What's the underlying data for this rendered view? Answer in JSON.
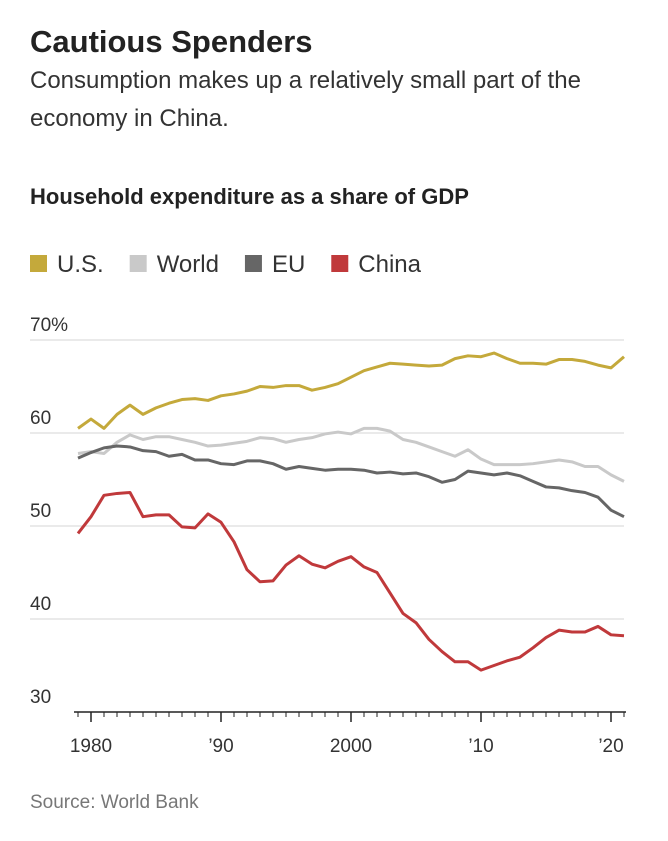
{
  "chart_data": {
    "type": "line",
    "title": "Cautious Spenders",
    "subtitle": "Consumption makes up a relatively small part of the economy in China.",
    "chart_title": "Household expenditure as a share of GDP",
    "source": "Source: World Bank",
    "x": [
      1979,
      1980,
      1981,
      1982,
      1983,
      1984,
      1985,
      1986,
      1987,
      1988,
      1989,
      1990,
      1991,
      1992,
      1993,
      1994,
      1995,
      1996,
      1997,
      1998,
      1999,
      2000,
      2001,
      2002,
      2003,
      2004,
      2005,
      2006,
      2007,
      2008,
      2009,
      2010,
      2011,
      2012,
      2013,
      2014,
      2015,
      2016,
      2017,
      2018,
      2019,
      2020,
      2021
    ],
    "xlim": [
      1979,
      2021
    ],
    "xticks": [
      1980,
      {
        "value": 1990,
        "label": "’90"
      },
      2000,
      {
        "value": 2010,
        "label": "’10"
      },
      {
        "value": 2020,
        "label": "’20"
      }
    ],
    "ylim": [
      30,
      70
    ],
    "yticks": [
      {
        "value": 70,
        "label": "70%"
      },
      60,
      50,
      40,
      30
    ],
    "grid": true,
    "series": [
      {
        "name": "U.S.",
        "color": "#c4a93b",
        "values": [
          60.5,
          61.5,
          60.5,
          62,
          63,
          62,
          62.7,
          63.2,
          63.6,
          63.7,
          63.5,
          64,
          64.2,
          64.5,
          65,
          64.9,
          65.1,
          65.1,
          64.6,
          64.9,
          65.3,
          66,
          66.7,
          67.1,
          67.5,
          67.4,
          67.3,
          67.2,
          67.3,
          68,
          68.3,
          68.2,
          68.6,
          68,
          67.5,
          67.5,
          67.4,
          67.9,
          67.9,
          67.7,
          67.3,
          67,
          68.2
        ]
      },
      {
        "name": "World",
        "color": "#c9c9c9",
        "values": [
          57.8,
          58,
          57.8,
          59,
          59.8,
          59.3,
          59.6,
          59.6,
          59.3,
          59,
          58.6,
          58.7,
          58.9,
          59.1,
          59.5,
          59.4,
          59,
          59.3,
          59.5,
          59.9,
          60.1,
          59.9,
          60.5,
          60.5,
          60.2,
          59.3,
          59,
          58.5,
          58,
          57.5,
          58.2,
          57.2,
          56.6,
          56.6,
          56.6,
          56.7,
          56.9,
          57.1,
          56.9,
          56.4,
          56.4,
          55.5,
          54.8
        ]
      },
      {
        "name": "EU",
        "color": "#666666",
        "values": [
          57.3,
          57.9,
          58.4,
          58.6,
          58.5,
          58.1,
          58,
          57.5,
          57.7,
          57.1,
          57.1,
          56.7,
          56.6,
          57,
          57,
          56.7,
          56.1,
          56.4,
          56.2,
          56,
          56.1,
          56.1,
          56,
          55.7,
          55.8,
          55.6,
          55.7,
          55.3,
          54.7,
          55,
          55.9,
          55.7,
          55.5,
          55.7,
          55.4,
          54.8,
          54.2,
          54.1,
          53.8,
          53.6,
          53.1,
          51.7,
          51
        ]
      },
      {
        "name": "China",
        "color": "#c0393b",
        "values": [
          49.2,
          51,
          53.3,
          53.5,
          53.6,
          51,
          51.2,
          51.2,
          49.9,
          49.8,
          51.3,
          50.4,
          48.3,
          45.3,
          44,
          44.1,
          45.8,
          46.8,
          45.9,
          45.5,
          46.2,
          46.7,
          45.6,
          45,
          42.8,
          40.6,
          39.6,
          37.8,
          36.5,
          35.4,
          35.4,
          34.5,
          35,
          35.5,
          35.9,
          36.9,
          38,
          38.8,
          38.6,
          38.6,
          39.2,
          38.3,
          38.2
        ]
      }
    ]
  }
}
